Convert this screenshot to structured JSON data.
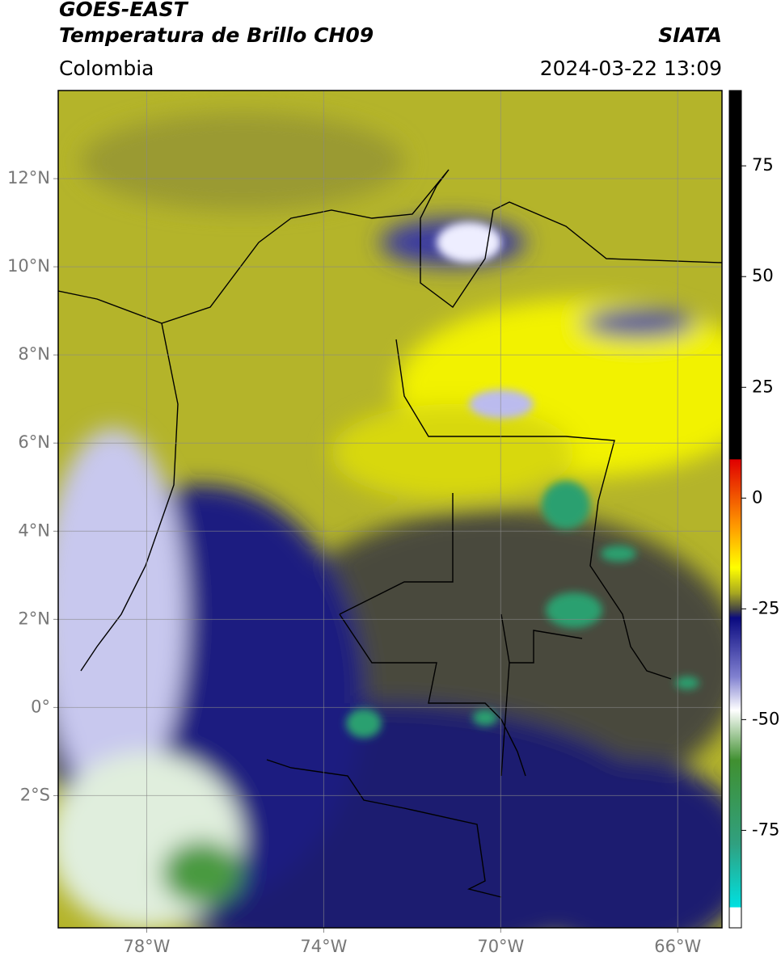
{
  "header": {
    "title": "GOES-EAST",
    "subtitle": "Temperatura de Brillo CH09",
    "source": "SIATA",
    "region": "Colombia",
    "datetime": "2024-03-22 13:09"
  },
  "map": {
    "xlim": [
      -80,
      -65
    ],
    "ylim": [
      -5,
      14
    ],
    "xticks": [
      {
        "value": -78,
        "label": "78°W"
      },
      {
        "value": -74,
        "label": "74°W"
      },
      {
        "value": -70,
        "label": "70°W"
      },
      {
        "value": -66,
        "label": "66°W"
      }
    ],
    "yticks": [
      {
        "value": 12,
        "label": "12°N"
      },
      {
        "value": 10,
        "label": "10°N"
      },
      {
        "value": 8,
        "label": "8°N"
      },
      {
        "value": 6,
        "label": "6°N"
      },
      {
        "value": 4,
        "label": "4°N"
      },
      {
        "value": 2,
        "label": "2°N"
      },
      {
        "value": 0,
        "label": "0°"
      },
      {
        "value": -2,
        "label": "2°S"
      }
    ],
    "grid": true
  },
  "colorbar": {
    "clim": [
      -97,
      92
    ],
    "ticks": [
      75,
      50,
      25,
      0,
      -25,
      -50,
      -75
    ]
  }
}
